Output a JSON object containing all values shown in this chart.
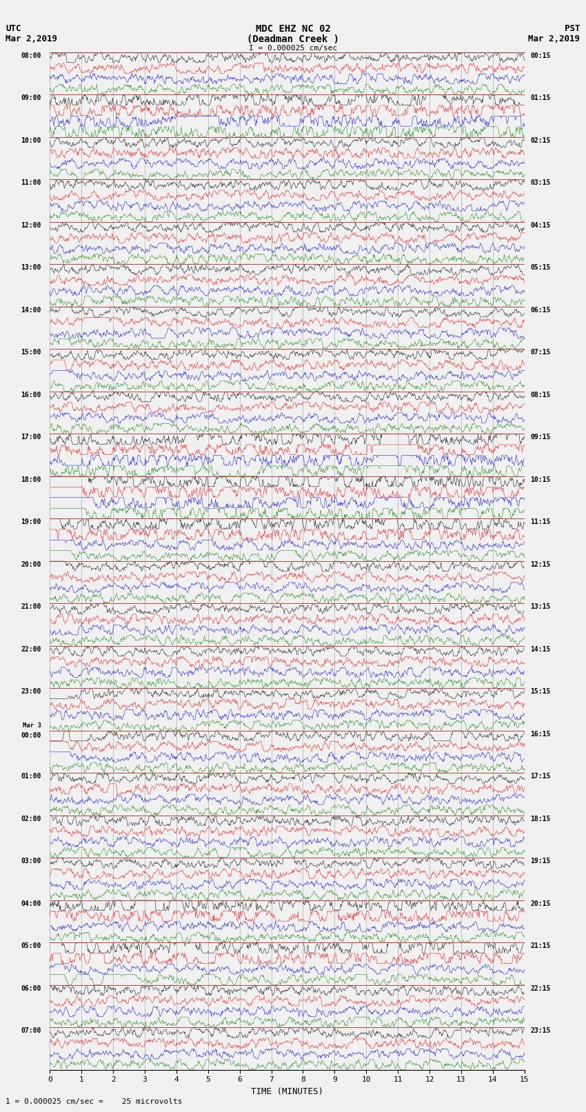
{
  "title_line1": "MDC EHZ NC 02",
  "title_line2": "(Deadman Creek )",
  "title_line3": "I = 0.000025 cm/sec",
  "left_header_line1": "UTC",
  "left_header_line2": "Mar 2,2019",
  "right_header_line1": "PST",
  "right_header_line2": "Mar 2,2019",
  "xlabel": "TIME (MINUTES)",
  "footer": "1 = 0.000025 cm/sec =    25 microvolts",
  "xlim": [
    0,
    15
  ],
  "xticks": [
    0,
    1,
    2,
    3,
    4,
    5,
    6,
    7,
    8,
    9,
    10,
    11,
    12,
    13,
    14,
    15
  ],
  "num_hours": 24,
  "traces_per_hour": 4,
  "trace_colors": [
    "black",
    "red",
    "blue",
    "green"
  ],
  "left_labels_hours": [
    "08:00",
    "09:00",
    "10:00",
    "11:00",
    "12:00",
    "13:00",
    "14:00",
    "15:00",
    "16:00",
    "17:00",
    "18:00",
    "19:00",
    "20:00",
    "21:00",
    "22:00",
    "23:00",
    "Mar 3\n00:00",
    "01:00",
    "02:00",
    "03:00",
    "04:00",
    "05:00",
    "06:00",
    "07:00"
  ],
  "right_labels_hours": [
    "00:15",
    "01:15",
    "02:15",
    "03:15",
    "04:15",
    "05:15",
    "06:15",
    "07:15",
    "08:15",
    "09:15",
    "10:15",
    "11:15",
    "12:15",
    "13:15",
    "14:15",
    "15:15",
    "16:15",
    "17:15",
    "18:15",
    "19:15",
    "20:15",
    "21:15",
    "22:15",
    "23:15"
  ],
  "background_color": "#f0f0f0",
  "vgrid_color": "#aaaaaa",
  "hgrid_color": "#cc2222",
  "seed": 12345
}
